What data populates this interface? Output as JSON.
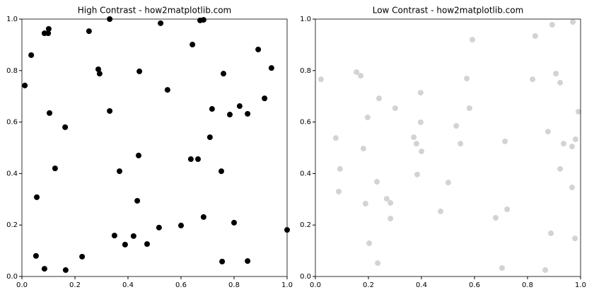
{
  "chart_data": [
    {
      "type": "scatter",
      "title": "High Contrast - how2matplotlib.com",
      "color": "#000000",
      "x": [
        0.011,
        0.035,
        0.056,
        0.053,
        0.085,
        0.099,
        0.101,
        0.104,
        0.085,
        0.125,
        0.163,
        0.165,
        0.227,
        0.253,
        0.288,
        0.293,
        0.331,
        0.331,
        0.349,
        0.368,
        0.389,
        0.421,
        0.435,
        0.44,
        0.443,
        0.472,
        0.517,
        0.523,
        0.549,
        0.6,
        0.637,
        0.643,
        0.664,
        0.672,
        0.685,
        0.685,
        0.709,
        0.717,
        0.752,
        0.755,
        0.76,
        0.784,
        0.8,
        0.821,
        0.851,
        0.851,
        0.891,
        0.915,
        0.941,
        1.0
      ],
      "values": [
        0.742,
        0.86,
        0.308,
        0.08,
        0.945,
        0.945,
        0.962,
        0.635,
        0.03,
        0.42,
        0.58,
        0.025,
        0.077,
        0.953,
        0.805,
        0.788,
        1.0,
        0.643,
        0.159,
        0.409,
        0.124,
        0.157,
        0.294,
        0.47,
        0.797,
        0.126,
        0.19,
        0.984,
        0.725,
        0.198,
        0.456,
        0.901,
        0.456,
        0.995,
        0.997,
        0.231,
        0.541,
        0.651,
        0.409,
        0.058,
        0.788,
        0.629,
        0.209,
        0.662,
        0.632,
        0.06,
        0.882,
        0.692,
        0.81,
        0.181
      ],
      "xlim": [
        0,
        1
      ],
      "ylim": [
        0,
        1
      ],
      "xticks": [
        {
          "value": 0,
          "label": "0.0"
        },
        {
          "value": 0.2,
          "label": "0.2"
        },
        {
          "value": 0.4,
          "label": "0.4"
        },
        {
          "value": 0.6,
          "label": "0.6"
        },
        {
          "value": 0.8,
          "label": "0.8"
        },
        {
          "value": 1,
          "label": "1.0"
        }
      ],
      "yticks": [
        {
          "value": 0,
          "label": "0.0"
        },
        {
          "value": 0.2,
          "label": "0.2"
        },
        {
          "value": 0.4,
          "label": "0.4"
        },
        {
          "value": 0.6,
          "label": "0.6"
        },
        {
          "value": 0.8,
          "label": "0.8"
        },
        {
          "value": 1,
          "label": "1.0"
        }
      ]
    },
    {
      "type": "scatter",
      "title": "Low Contrast - how2matplotlib.com",
      "color": "#d3d3d3",
      "x": [
        0.021,
        0.077,
        0.093,
        0.088,
        0.155,
        0.171,
        0.181,
        0.189,
        0.197,
        0.203,
        0.232,
        0.235,
        0.24,
        0.269,
        0.283,
        0.283,
        0.301,
        0.371,
        0.381,
        0.384,
        0.397,
        0.397,
        0.4,
        0.472,
        0.501,
        0.531,
        0.547,
        0.571,
        0.581,
        0.592,
        0.68,
        0.704,
        0.715,
        0.723,
        0.819,
        0.829,
        0.867,
        0.877,
        0.888,
        0.893,
        0.907,
        0.923,
        0.923,
        0.936,
        0.968,
        0.968,
        0.971,
        0.979,
        0.981,
        0.992
      ],
      "values": [
        0.766,
        0.538,
        0.418,
        0.33,
        0.794,
        0.78,
        0.497,
        0.283,
        0.618,
        0.129,
        0.368,
        0.052,
        0.692,
        0.302,
        0.286,
        0.225,
        0.654,
        0.541,
        0.516,
        0.396,
        0.714,
        0.599,
        0.486,
        0.253,
        0.365,
        0.585,
        0.516,
        0.769,
        0.654,
        0.92,
        0.228,
        0.033,
        0.525,
        0.261,
        0.766,
        0.934,
        0.025,
        0.563,
        0.168,
        0.978,
        0.788,
        0.753,
        0.418,
        0.516,
        0.505,
        0.346,
        0.989,
        0.148,
        0.533,
        0.64
      ],
      "xlim": [
        0,
        1
      ],
      "ylim": [
        0,
        1
      ],
      "xticks": [
        {
          "value": 0,
          "label": "0.0"
        },
        {
          "value": 0.2,
          "label": "0.2"
        },
        {
          "value": 0.4,
          "label": "0.4"
        },
        {
          "value": 0.6,
          "label": "0.6"
        },
        {
          "value": 0.8,
          "label": "0.8"
        },
        {
          "value": 1,
          "label": "1.0"
        }
      ],
      "yticks": [
        {
          "value": 0,
          "label": "0.0"
        },
        {
          "value": 0.2,
          "label": "0.2"
        },
        {
          "value": 0.4,
          "label": "0.4"
        },
        {
          "value": 0.6,
          "label": "0.6"
        },
        {
          "value": 0.8,
          "label": "0.8"
        },
        {
          "value": 1,
          "label": "1.0"
        }
      ]
    }
  ]
}
